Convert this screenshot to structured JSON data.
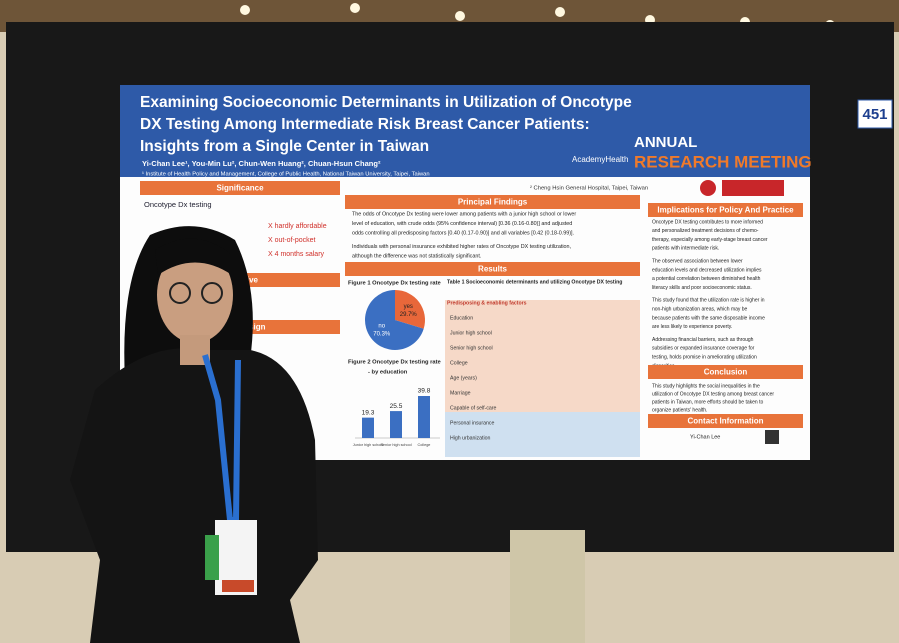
{
  "board_number": "451",
  "poster": {
    "title_lines": [
      "Examining Socioeconomic Determinants in Utilization of Oncotype",
      "DX Testing Among Intermediate Risk Breast Cancer Patients:",
      "Insights from a Single Center in Taiwan"
    ],
    "authors": "Yi-Chan Lee¹, You-Min Lu², Chun-Wen Huang², Chuan-Hsun Chang²",
    "affiliation_1": "¹ Institute of Health Policy and Management, College of Public Health, National Taiwan University, Taipei, Taiwan",
    "affiliation_2": "² Cheng Hsin General Hospital, Taipei, Taiwan",
    "brand": "AcademyHealth",
    "meeting_line_1": "ANNUAL",
    "meeting_line_2": "RESEARCH MEETING",
    "significance": {
      "heading": "Significance",
      "lines": [
        "Oncotype Dx testing",
        "X hardly affordable",
        "X out-of-pocket",
        "X 4 months salary"
      ]
    },
    "objective": {
      "heading": "Objective"
    },
    "study_design": {
      "heading": "Study Design"
    },
    "principal_findings": {
      "heading": "Principal Findings",
      "lines": [
        "The odds of Oncotype Dx testing were lower among patients with a junior high school or lower",
        "level of education, with crude odds (95% confidence interval) [0.36 (0.16-0.80)] and adjusted",
        "odds controlling all predisposing factors [0.40 (0.17-0.90)] and all variables [0.42 (0.18-0.99)].",
        "Individuals with personal insurance exhibited higher rates of Oncotype DX testing utilization,",
        "although the difference was not statistically significant."
      ]
    },
    "results": {
      "heading": "Results",
      "figure_1": {
        "title": "Figure 1 Oncotype Dx testing rate",
        "slices": [
          {
            "label": "yes",
            "value": 29.7,
            "value_label": "29.7%",
            "color": "#e8673a"
          },
          {
            "label": "no",
            "value": 70.3,
            "value_label": "70.3%",
            "color": "#3b6fc2"
          }
        ]
      },
      "figure_2": {
        "title": "Figure 2 Oncotype Dx testing rate",
        "subtitle": "- by education",
        "categories": [
          "Junior high school",
          "Senior high school",
          "College"
        ],
        "values": [
          19.3,
          25.5,
          39.8
        ],
        "color": "#3b6fc2"
      },
      "table_title": "Table 1 Socioeconomic determinants and utilizing Oncotype DX testing",
      "table_rows": [
        "Predisposing & enabling factors",
        "Education",
        "Junior high school",
        "Senior high school",
        "College",
        "Age (years)",
        "Marriage",
        "Capable of self-care",
        "Personal insurance",
        "High urbanization"
      ]
    },
    "implications": {
      "heading": "Implications for Policy And Practice",
      "lines": [
        "Oncotype DX testing contributes to more informed",
        "and personalized treatment decisions of chemo-",
        "therapy, especially among early-stage breast cancer",
        "patients with intermediate risk.",
        "The observed association between lower",
        "education levels and decreased utilization implies",
        "a potential correlation between diminished health",
        "literacy skills and poor socioeconomic status.",
        "This study found that the utilization rate is higher in",
        "non-high urbanization areas, which may be",
        "because patients with the same disposable income",
        "are less likely to experience poverty.",
        "Addressing financial barriers, such as through",
        "subsidies or expanded insurance coverage for",
        "testing, holds promise in ameliorating utilization",
        "disparities."
      ]
    },
    "conclusion": {
      "heading": "Conclusion",
      "lines": [
        "This study highlights the social inequalities in the",
        "utilization of Oncotype DX testing among breast cancer",
        "patients in Taiwan, more efforts should be taken to",
        "organize patients' health."
      ]
    },
    "contact": {
      "heading": "Contact Information",
      "name": "Yi-Chan Lee"
    }
  }
}
